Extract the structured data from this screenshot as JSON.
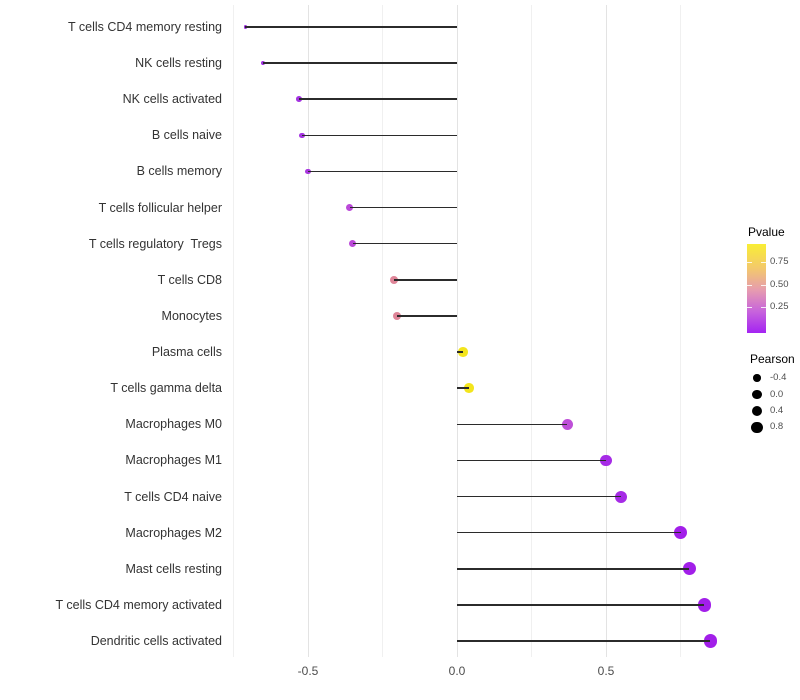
{
  "chart_data": {
    "type": "scatter",
    "subtype": "lollipop",
    "title": "",
    "xlabel": "",
    "ylabel": "",
    "baseline": 0.0,
    "x_axis": {
      "range": [
        -0.79,
        0.93
      ],
      "major_ticks": [
        -0.5,
        0.0,
        0.5
      ],
      "tick_labels": [
        "-0.5",
        "0.0",
        "0.5"
      ],
      "minor_ticks": [
        -0.75,
        -0.25,
        0.25,
        0.75
      ],
      "grid": "vertical-only"
    },
    "points": [
      {
        "label": "T cells CD4 memory resting",
        "pearson": -0.71,
        "color": "#9E2CE1"
      },
      {
        "label": "NK cells resting",
        "pearson": -0.65,
        "color": "#A030E2"
      },
      {
        "label": "NK cells activated",
        "pearson": -0.53,
        "color": "#A433E1"
      },
      {
        "label": "B cells naive",
        "pearson": -0.52,
        "color": "#A433E1"
      },
      {
        "label": "B cells memory",
        "pearson": -0.5,
        "color": "#A938DF"
      },
      {
        "label": "T cells follicular helper",
        "pearson": -0.36,
        "color": "#BB49D9"
      },
      {
        "label": "T cells regulatory  Tregs",
        "pearson": -0.35,
        "color": "#BB49D9"
      },
      {
        "label": "T cells CD8",
        "pearson": -0.21,
        "color": "#DF8598"
      },
      {
        "label": "Monocytes",
        "pearson": -0.2,
        "color": "#DF8598"
      },
      {
        "label": "Plasma cells",
        "pearson": 0.02,
        "color": "#F3E51D"
      },
      {
        "label": "T cells gamma delta",
        "pearson": 0.04,
        "color": "#F3E51D"
      },
      {
        "label": "Macrophages M0",
        "pearson": 0.37,
        "color": "#BE4FD8"
      },
      {
        "label": "Macrophages M1",
        "pearson": 0.5,
        "color": "#A62BE6"
      },
      {
        "label": "T cells CD4 naive",
        "pearson": 0.55,
        "color": "#A62BE6"
      },
      {
        "label": "Macrophages M2",
        "pearson": 0.75,
        "color": "#A21FE9"
      },
      {
        "label": "Mast cells resting",
        "pearson": 0.78,
        "color": "#A21FE9"
      },
      {
        "label": "T cells CD4 memory activated",
        "pearson": 0.83,
        "color": "#A21FE9"
      },
      {
        "label": "Dendritic cells activated",
        "pearson": 0.85,
        "color": "#A21FE9"
      }
    ],
    "legend": {
      "position": "right",
      "pvalue": {
        "title": "Pvalue",
        "tick_labels": [
          "0.75",
          "0.50",
          "0.25"
        ],
        "gradient": [
          "#F9EE35",
          "#F3C96B",
          "#E69BB0",
          "#C763DC",
          "#A424F2"
        ]
      },
      "pearson": {
        "title": "Pearson",
        "entries": [
          {
            "label": "-0.4",
            "value": -0.4
          },
          {
            "label": "0.0",
            "value": 0.0
          },
          {
            "label": "0.4",
            "value": 0.4
          },
          {
            "label": "0.8",
            "value": 0.8
          }
        ]
      }
    }
  },
  "colors": {
    "background": "#ffffff",
    "grid_major": "#e3e3e3",
    "grid_minor": "#f0f0f0",
    "segment": "#2b2b2b",
    "axis_text": "#4d4d4d",
    "y_label_text": "#333333",
    "legend_title_text": "#000000",
    "size_legend_dot": "#000000"
  }
}
